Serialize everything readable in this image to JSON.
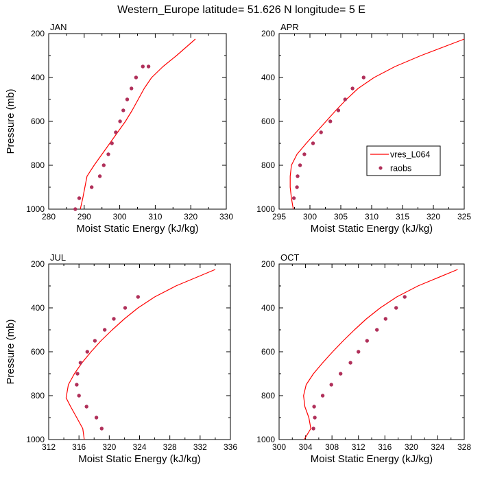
{
  "title": "Western_Europe  latitude= 51.626 N longitude= 5 E",
  "colors": {
    "model": "#ff0000",
    "obs": "#b0305a",
    "axis": "#000000"
  },
  "legend": {
    "placement": "inside APR panel, lower-right",
    "model_label": "vres_L064",
    "obs_label": "raobs"
  },
  "chart_data": [
    {
      "type": "line",
      "panel": "JAN",
      "title": "JAN",
      "xlabel": "Moist Static Energy (kJ/kg)",
      "ylabel": "Pressure (mb)",
      "xlim": [
        280,
        330
      ],
      "ylim": [
        1000,
        200
      ],
      "xticks": [
        280,
        290,
        300,
        310,
        320,
        330
      ],
      "yticks": [
        200,
        400,
        600,
        800,
        1000
      ],
      "series": [
        {
          "name": "vres_L064",
          "style": "line",
          "x": [
            288.9,
            289.6,
            290.2,
            290.8,
            292.8,
            295.0,
            297.2,
            299.4,
            301.6,
            303.5,
            305.2,
            306.9,
            309.0,
            312.2,
            316.0,
            321.3
          ],
          "y": [
            1000,
            950,
            900,
            850,
            800,
            750,
            700,
            650,
            600,
            550,
            500,
            450,
            400,
            350,
            300,
            225
          ]
        },
        {
          "name": "raobs",
          "style": "markers",
          "x": [
            287.5,
            288.6,
            292.1,
            294.4,
            295.5,
            296.8,
            297.8,
            298.9,
            300.1,
            301.0,
            302.1,
            303.3,
            304.6,
            306.5,
            308.1
          ],
          "y": [
            1000,
            950,
            900,
            850,
            800,
            750,
            700,
            650,
            600,
            550,
            500,
            450,
            400,
            350,
            350
          ]
        }
      ]
    },
    {
      "type": "line",
      "panel": "APR",
      "title": "APR",
      "xlabel": "Moist Static Energy (kJ/kg)",
      "ylabel": "",
      "xlim": [
        295,
        325
      ],
      "ylim": [
        1000,
        200
      ],
      "xticks": [
        295,
        300,
        305,
        310,
        315,
        320,
        325
      ],
      "yticks": [
        200,
        400,
        600,
        800,
        1000
      ],
      "series": [
        {
          "name": "vres_L064",
          "style": "line",
          "x": [
            297.3,
            297.0,
            296.8,
            296.8,
            297.0,
            297.9,
            299.4,
            301.0,
            302.6,
            304.2,
            305.9,
            307.8,
            310.4,
            313.8,
            318.0,
            325.0
          ],
          "y": [
            1000,
            950,
            900,
            850,
            800,
            750,
            700,
            650,
            600,
            550,
            500,
            450,
            400,
            350,
            300,
            225
          ]
        },
        {
          "name": "raobs",
          "style": "markers",
          "x": [
            297.4,
            297.9,
            298.0,
            298.4,
            299.1,
            300.5,
            301.8,
            303.3,
            304.6,
            305.7,
            306.9,
            308.7
          ],
          "y": [
            950,
            900,
            850,
            800,
            750,
            700,
            650,
            600,
            550,
            500,
            450,
            400
          ]
        }
      ]
    },
    {
      "type": "line",
      "panel": "JUL",
      "title": "JUL",
      "xlabel": "Moist Static Energy (kJ/kg)",
      "ylabel": "Pressure (mb)",
      "xlim": [
        312,
        336
      ],
      "ylim": [
        1000,
        200
      ],
      "xticks": [
        312,
        316,
        320,
        324,
        328,
        332,
        336
      ],
      "yticks": [
        200,
        400,
        600,
        800,
        1000
      ],
      "series": [
        {
          "name": "vres_L064",
          "style": "line",
          "x": [
            316.7,
            316.5,
            315.7,
            314.9,
            314.3,
            314.6,
            315.4,
            316.4,
            317.6,
            318.9,
            320.4,
            322.0,
            323.8,
            326.0,
            328.8,
            334.0
          ],
          "y": [
            1000,
            950,
            900,
            850,
            810,
            750,
            700,
            650,
            600,
            550,
            500,
            450,
            400,
            350,
            300,
            225
          ]
        },
        {
          "name": "raobs",
          "style": "markers",
          "x": [
            319.0,
            318.3,
            317.0,
            316.0,
            315.7,
            315.8,
            316.2,
            317.1,
            318.1,
            319.4,
            320.6,
            322.1,
            323.8
          ],
          "y": [
            950,
            900,
            850,
            800,
            750,
            700,
            650,
            600,
            550,
            500,
            450,
            400,
            350
          ]
        }
      ]
    },
    {
      "type": "line",
      "panel": "OCT",
      "title": "OCT",
      "xlabel": "Moist Static Energy (kJ/kg)",
      "ylabel": "",
      "xlim": [
        300,
        328
      ],
      "ylim": [
        1000,
        200
      ],
      "xticks": [
        300,
        304,
        308,
        312,
        316,
        320,
        324,
        328
      ],
      "yticks": [
        200,
        400,
        600,
        800,
        1000
      ],
      "series": [
        {
          "name": "vres_L064",
          "style": "line",
          "x": [
            303.8,
            304.8,
            304.5,
            303.9,
            303.7,
            304.1,
            305.2,
            306.6,
            308.1,
            309.7,
            311.4,
            313.2,
            315.3,
            317.8,
            321.0,
            327.0
          ],
          "y": [
            1000,
            950,
            900,
            850,
            800,
            750,
            700,
            650,
            600,
            550,
            500,
            450,
            400,
            350,
            300,
            225
          ]
        },
        {
          "name": "raobs",
          "style": "markers",
          "x": [
            305.2,
            305.4,
            305.3,
            306.6,
            307.9,
            309.3,
            310.8,
            312.0,
            313.3,
            314.8,
            316.1,
            317.7,
            319.0
          ],
          "y": [
            950,
            900,
            850,
            800,
            750,
            700,
            650,
            600,
            550,
            500,
            450,
            400,
            350
          ]
        }
      ]
    }
  ]
}
